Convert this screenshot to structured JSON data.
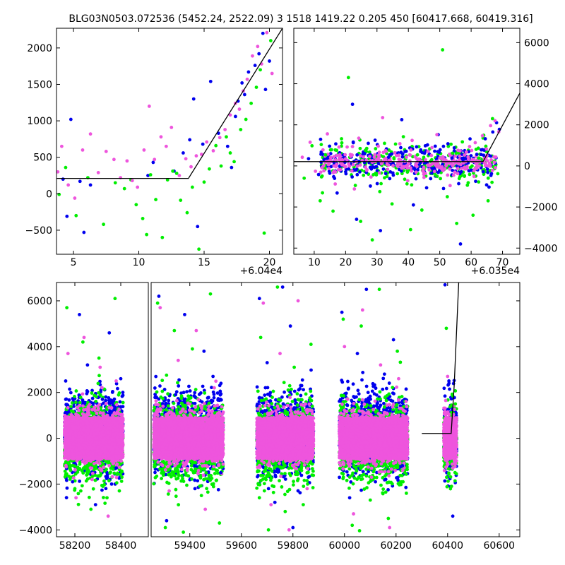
{
  "title": "BLG03N0503.072536 (5452.24, 2522.09)   3 1518 1419.22 0.205 450 [60417.668, 60419.316]",
  "colors": {
    "blue": "#0000ee",
    "green": "#00ee00",
    "pink": "#ee55dd",
    "model_line": "#000000",
    "axes": "#000000",
    "background": "#ffffff"
  },
  "chart_data": [
    {
      "id": "top-left",
      "type": "scatter",
      "title": "",
      "xlim": [
        60403.7,
        60421.0
      ],
      "ylim": [
        -830,
        2270
      ],
      "xticks": [
        5,
        10,
        15,
        20
      ],
      "yticks": [
        -500,
        0,
        500,
        1000,
        1500,
        2000
      ],
      "x_offset_label": "+6.04e4",
      "x_offset": 60400,
      "ytick_side": "left",
      "grid": false,
      "series": [
        {
          "color_key": "blue",
          "x": [
            60404.2,
            60404.5,
            60404.8,
            60405.5,
            60405.8,
            60406.3,
            60410.7,
            60411.1,
            60412.7,
            60413.4,
            60413.9,
            60414.2,
            60414.5,
            60414.9,
            60415.5,
            60416.1,
            60416.8,
            60417.1,
            60417.4,
            60417.6,
            60417.9,
            60418.1,
            60418.4,
            60418.9,
            60419.2,
            60419.5,
            60419.7,
            60420.0
          ],
          "y": [
            200,
            -310,
            1020,
            170,
            -530,
            120,
            250,
            430,
            310,
            560,
            740,
            1300,
            -450,
            680,
            1540,
            830,
            650,
            360,
            1060,
            1270,
            1520,
            1360,
            1670,
            1760,
            1920,
            2200,
            1430,
            1820
          ]
        },
        {
          "color_key": "green",
          "x": [
            60403.9,
            60404.4,
            60405.2,
            60406.1,
            60407.3,
            60408.2,
            60408.9,
            60409.4,
            60409.8,
            60410.3,
            60410.6,
            60410.9,
            60411.3,
            60411.8,
            60412.2,
            60412.6,
            60412.9,
            60413.2,
            60413.7,
            60414.1,
            60414.6,
            60415.0,
            60415.4,
            60415.9,
            60416.3,
            60416.7,
            60417.0,
            60417.3,
            60417.8,
            60418.2,
            60418.6,
            60419.0,
            60419.3,
            60419.6,
            60420.1
          ],
          "y": [
            -10,
            360,
            -300,
            220,
            -420,
            150,
            70,
            190,
            -150,
            -340,
            -560,
            260,
            -80,
            -600,
            190,
            310,
            280,
            -90,
            -260,
            90,
            -760,
            160,
            340,
            660,
            380,
            780,
            560,
            440,
            880,
            1020,
            1240,
            1460,
            1700,
            -540,
            2100
          ]
        },
        {
          "color_key": "pink",
          "x": [
            60403.8,
            60404.1,
            60404.6,
            60405.1,
            60405.7,
            60406.3,
            60406.9,
            60407.5,
            60408.1,
            60408.6,
            60409.1,
            60409.5,
            60409.9,
            60410.4,
            60410.8,
            60411.2,
            60411.7,
            60412.1,
            60412.5,
            60413.1,
            60413.6,
            60414.0,
            60414.4,
            60414.8,
            60415.2,
            60415.7,
            60416.2,
            60416.6,
            60417.0,
            60417.4,
            60417.7,
            60418.0,
            60418.3,
            60418.7,
            60419.1,
            60419.4,
            60419.8,
            60420.2
          ],
          "y": [
            300,
            650,
            120,
            -60,
            600,
            820,
            290,
            580,
            470,
            220,
            450,
            180,
            90,
            600,
            1200,
            470,
            780,
            650,
            910,
            250,
            480,
            370,
            520,
            540,
            710,
            590,
            770,
            880,
            1080,
            1240,
            1160,
            1410,
            1570,
            1890,
            2020,
            1780,
            2210,
            1650
          ]
        }
      ],
      "model_line": {
        "x": [
          60403.7,
          60413.8,
          60421.0
        ],
        "y": [
          210,
          210,
          2270
        ]
      }
    },
    {
      "id": "top-right",
      "type": "scatter",
      "title": "",
      "xlim": [
        60353.5,
        60425.5
      ],
      "ylim": [
        -4300,
        6700
      ],
      "xticks": [
        10,
        20,
        30,
        40,
        50,
        60,
        70
      ],
      "yticks": [
        -4000,
        -2000,
        0,
        2000,
        4000,
        6000
      ],
      "x_offset_label": "+6.035e4",
      "x_offset": 60350,
      "ytick_side": "right",
      "grid": false,
      "series": [
        {
          "color_key": "blue",
          "x": [
            60358.2,
            60361.4,
            60364.9,
            60367.3,
            60369.8,
            60372.2,
            60373.5,
            60375.6,
            60377.9,
            60379.4,
            60381.1,
            60383.7,
            60385.2,
            60387.9,
            60389.3,
            60391.6,
            60393.8,
            60395.4,
            60397.1,
            60399.5,
            60401.2,
            60403.9,
            60406.6,
            60409.3,
            60411.8,
            60413.2,
            60414.5,
            60415.7,
            60416.9,
            60418.1,
            60419.0
          ],
          "y": [
            350,
            -420,
            960,
            -1320,
            180,
            3000,
            -2600,
            600,
            -980,
            1250,
            -3150,
            420,
            -450,
            2250,
            710,
            -1900,
            160,
            980,
            -620,
            1520,
            -1100,
            380,
            -3800,
            -240,
            560,
            780,
            1320,
            -1030,
            1650,
            2100,
            1780
          ]
        },
        {
          "color_key": "green",
          "x": [
            60356.8,
            60359.3,
            60361.9,
            60363.6,
            60366.0,
            60368.7,
            60370.9,
            60373.1,
            60374.8,
            60376.3,
            60378.5,
            60380.9,
            60382.4,
            60384.8,
            60386.5,
            60388.4,
            60390.7,
            60392.9,
            60394.3,
            60396.8,
            60398.7,
            60400.9,
            60402.4,
            60404.1,
            60405.4,
            60407.2,
            60408.8,
            60410.6,
            60412.4,
            60414.0,
            60415.4,
            60416.8,
            60418.5
          ],
          "y": [
            -600,
            980,
            -1700,
            540,
            -2200,
            1320,
            4300,
            -950,
            -2700,
            760,
            -3600,
            -1250,
            1100,
            -1850,
            -380,
            1420,
            -3100,
            540,
            -2150,
            830,
            -460,
            5650,
            -1500,
            620,
            -2800,
            1170,
            -940,
            -2400,
            380,
            1490,
            -1700,
            2300,
            -380
          ]
        },
        {
          "color_key": "pink",
          "x": [
            60356.2,
            60358.7,
            60360.4,
            60362.8,
            60364.2,
            60366.7,
            60368.3,
            60370.5,
            60372.8,
            60374.2,
            60376.6,
            60378.1,
            60380.4,
            60381.8,
            60383.4,
            60385.7,
            60387.3,
            60389.8,
            60391.2,
            60393.4,
            60394.9,
            60397.5,
            60399.1,
            60401.6,
            60403.3,
            60405.8,
            60407.9,
            60409.5,
            60411.3,
            60413.6,
            60414.9,
            60416.2,
            60417.6,
            60418.8
          ],
          "y": [
            420,
            1150,
            -260,
            780,
            1560,
            -880,
            450,
            920,
            -1120,
            1350,
            280,
            -540,
            960,
            2350,
            -170,
            640,
            1080,
            -720,
            1240,
            330,
            -410,
            890,
            1520,
            220,
            -960,
            760,
            530,
            940,
            1130,
            1470,
            820,
            1960,
            2200,
            1660
          ]
        }
      ],
      "model_line": {
        "x": [
          60353.5,
          60413.8,
          60425.5
        ],
        "y": [
          210,
          210,
          3540
        ]
      }
    },
    {
      "id": "bottom",
      "type": "scatter",
      "title": "",
      "xlim": [
        58120,
        60680
      ],
      "ylim": [
        -4300,
        6800
      ],
      "xticks": [
        58200,
        58400,
        59400,
        59600,
        59800,
        60000,
        60200,
        60400,
        60600
      ],
      "yticks": [
        -4000,
        -2000,
        0,
        2000,
        4000,
        6000
      ],
      "ytick_side": "left",
      "grid": false,
      "segments": [
        {
          "x_start": 58120,
          "x_end": 58520
        },
        {
          "x_start": 59250,
          "x_end": 60680
        }
      ],
      "season_ranges": [
        [
          58155,
          58410
        ],
        [
          59260,
          59530
        ],
        [
          59660,
          59880
        ],
        [
          59980,
          60245
        ],
        [
          60385,
          60435
        ]
      ],
      "series": [
        {
          "color_key": "blue",
          "x": [
            58160,
            58190,
            58220,
            58255,
            58290,
            58320,
            58350,
            58380,
            58400,
            59280,
            59310,
            59345,
            59380,
            59420,
            59455,
            59490,
            59520,
            59670,
            59700,
            59730,
            59760,
            59790,
            59800,
            59830,
            59860,
            59990,
            60020,
            60050,
            60085,
            60120,
            60155,
            60190,
            60225,
            60390,
            60405,
            60420
          ],
          "y": [
            2500,
            -1900,
            5400,
            3200,
            -2900,
            1700,
            4600,
            -1300,
            2600,
            6200,
            -3600,
            1900,
            5400,
            -2200,
            3800,
            2700,
            -1500,
            6100,
            3300,
            -2800,
            6600,
            4900,
            -3900,
            2300,
            -1700,
            5500,
            -2600,
            3700,
            6500,
            -1900,
            2800,
            4300,
            -1200,
            6700,
            2500,
            -3400
          ]
        },
        {
          "color_key": "green",
          "x": [
            58165,
            58200,
            58235,
            58270,
            58305,
            58340,
            58375,
            58405,
            59275,
            59305,
            59340,
            59375,
            59410,
            59445,
            59480,
            59515,
            59675,
            59705,
            59740,
            59770,
            59805,
            59840,
            59870,
            59995,
            60030,
            60065,
            60100,
            60135,
            60170,
            60205,
            60240,
            60395,
            60415,
            60430
          ],
          "y": [
            5700,
            -2200,
            4200,
            -3100,
            3500,
            -2600,
            6100,
            -1700,
            5900,
            -3900,
            4700,
            -4100,
            3900,
            -2500,
            6300,
            -3700,
            4400,
            -4000,
            6600,
            -3200,
            3100,
            -2900,
            4100,
            5200,
            -3800,
            4900,
            -2700,
            6500,
            -3500,
            3800,
            -2400,
            4800,
            -2100,
            1500
          ]
        },
        {
          "color_key": "pink",
          "x": [
            58170,
            58205,
            58240,
            58275,
            58310,
            58345,
            58380,
            59285,
            59320,
            59355,
            59390,
            59425,
            59460,
            59495,
            59685,
            59715,
            59750,
            59785,
            59820,
            59855,
            60000,
            60035,
            60070,
            60105,
            60140,
            60175,
            60210,
            60400,
            60420
          ],
          "y": [
            3700,
            -2600,
            4400,
            -1800,
            3100,
            -3400,
            2500,
            5700,
            -2300,
            3400,
            -1400,
            4700,
            -3100,
            2200,
            5900,
            -2900,
            3700,
            -4000,
            6000,
            -2200,
            4000,
            -3300,
            5600,
            -1700,
            3200,
            -3900,
            2600,
            2700,
            -1300
          ]
        }
      ],
      "bands": [
        {
          "color_key": "blue",
          "y_low": -1200,
          "y_high": 1600
        },
        {
          "color_key": "green",
          "y_low": -1500,
          "y_high": 1200
        },
        {
          "color_key": "pink",
          "y_low": -900,
          "y_high": 1000
        }
      ],
      "model_line": {
        "x": [
          60300,
          60413.8,
          60425.5,
          60443
        ],
        "y": [
          210,
          210,
          2300,
          6800
        ]
      }
    }
  ]
}
